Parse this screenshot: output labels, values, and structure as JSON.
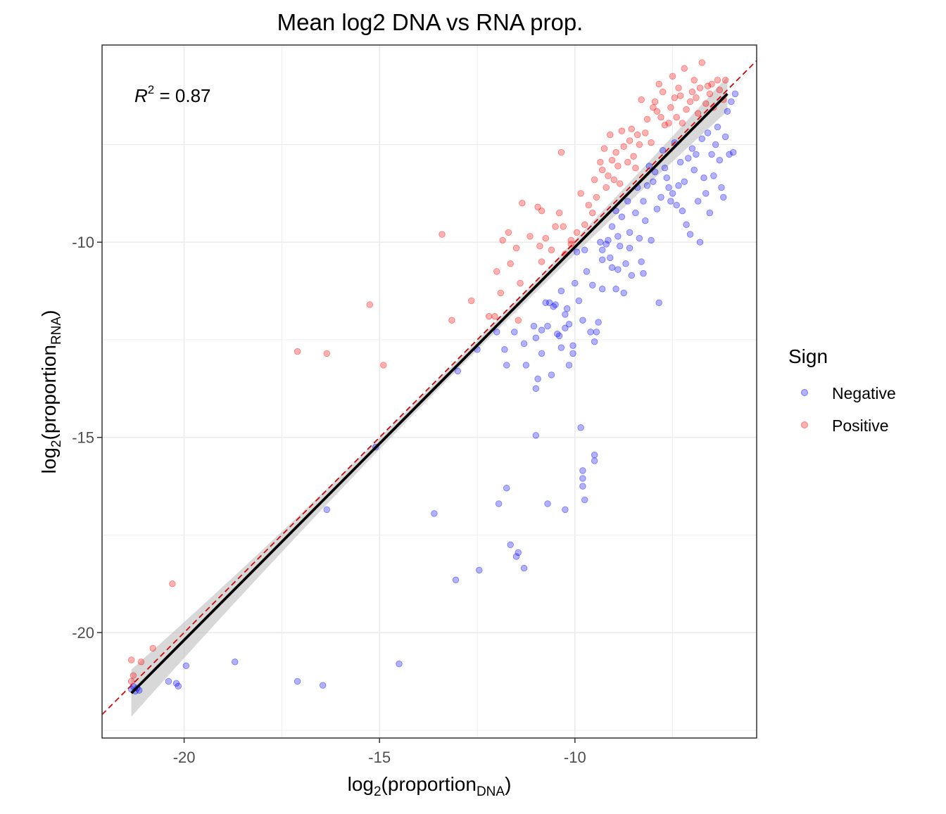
{
  "chart_data": {
    "type": "scatter",
    "title": "Mean log2 DNA vs RNA prop.",
    "xlabel": {
      "base": "log",
      "sub": "2",
      "open": "(proportion",
      "sub2": "DNA",
      "close": ")"
    },
    "ylabel": {
      "base": "log",
      "sub": "2",
      "open": "(proportion",
      "sub2": "RNA",
      "close": ")"
    },
    "xlim": [
      -22.1,
      -5.35
    ],
    "ylim": [
      -22.7,
      -4.95
    ],
    "x_ticks": [
      -20,
      -15,
      -10
    ],
    "x_tick_labels": [
      "-20",
      "-15",
      "-10"
    ],
    "y_ticks": [
      -20,
      -15,
      -10
    ],
    "y_tick_labels": [
      "-20",
      "-15",
      "-10"
    ],
    "grid": true,
    "annotation": {
      "symbol": "R",
      "superscript": "2",
      "text": " = 0.87"
    },
    "legend": {
      "title": "Sign",
      "position": "right",
      "items": [
        {
          "label": "Negative",
          "color": "#0000ff"
        },
        {
          "label": "Positive",
          "color": "#ff0000"
        }
      ]
    },
    "identity_line": {
      "slope": 1,
      "intercept": 0,
      "color": "#cc0000",
      "style": "dashed"
    },
    "fit_line": {
      "x": [
        -21.35,
        -6.1
      ],
      "y": [
        -21.55,
        -6.2
      ],
      "color": "#000000",
      "band_color": "#bebebe"
    },
    "series": [
      {
        "name": "Negative",
        "color": "#0000ff",
        "points": [
          [
            -21.35,
            -21.45
          ],
          [
            -21.3,
            -21.38
          ],
          [
            -21.25,
            -21.5
          ],
          [
            -21.2,
            -21.42
          ],
          [
            -21.15,
            -21.48
          ],
          [
            -20.4,
            -21.25
          ],
          [
            -20.2,
            -21.3
          ],
          [
            -20.15,
            -21.37
          ],
          [
            -19.95,
            -20.85
          ],
          [
            -18.7,
            -20.75
          ],
          [
            -17.1,
            -21.25
          ],
          [
            -16.45,
            -21.35
          ],
          [
            -14.5,
            -20.8
          ],
          [
            -16.35,
            -16.85
          ],
          [
            -13.6,
            -16.95
          ],
          [
            -13.05,
            -18.65
          ],
          [
            -12.45,
            -18.4
          ],
          [
            -11.75,
            -16.3
          ],
          [
            -11.95,
            -16.7
          ],
          [
            -11.65,
            -17.75
          ],
          [
            -11.45,
            -17.95
          ],
          [
            -11.5,
            -18.05
          ],
          [
            -11.3,
            -18.35
          ],
          [
            -11.0,
            -14.95
          ],
          [
            -10.7,
            -16.7
          ],
          [
            -10.25,
            -16.85
          ],
          [
            -9.85,
            -14.75
          ],
          [
            -9.8,
            -15.85
          ],
          [
            -9.8,
            -16.05
          ],
          [
            -9.8,
            -16.25
          ],
          [
            -9.75,
            -16.6
          ],
          [
            -9.5,
            -15.6
          ],
          [
            -9.5,
            -15.45
          ],
          [
            -15.1,
            -15.25
          ],
          [
            -13.0,
            -13.3
          ],
          [
            -12.5,
            -12.75
          ],
          [
            -12.0,
            -12.3
          ],
          [
            -11.8,
            -12.75
          ],
          [
            -11.75,
            -13.15
          ],
          [
            -11.55,
            -12.3
          ],
          [
            -11.3,
            -12.6
          ],
          [
            -11.25,
            -13.15
          ],
          [
            -11.05,
            -12.15
          ],
          [
            -11.0,
            -12.45
          ],
          [
            -11.0,
            -13.75
          ],
          [
            -10.95,
            -13.5
          ],
          [
            -10.85,
            -12.25
          ],
          [
            -10.85,
            -12.85
          ],
          [
            -10.75,
            -11.55
          ],
          [
            -10.7,
            -12.15
          ],
          [
            -10.65,
            -11.55
          ],
          [
            -10.6,
            -13.4
          ],
          [
            -10.55,
            -11.65
          ],
          [
            -10.5,
            -11.6
          ],
          [
            -10.45,
            -12.35
          ],
          [
            -10.4,
            -12.4
          ],
          [
            -10.35,
            -12.7
          ],
          [
            -10.35,
            -11.25
          ],
          [
            -10.25,
            -11.85
          ],
          [
            -10.25,
            -12.2
          ],
          [
            -10.2,
            -11.7
          ],
          [
            -10.15,
            -12.1
          ],
          [
            -10.15,
            -13.15
          ],
          [
            -10.05,
            -12.65
          ],
          [
            -10.05,
            -12.85
          ],
          [
            -10.0,
            -11.05
          ],
          [
            -9.95,
            -10.25
          ],
          [
            -9.9,
            -11.5
          ],
          [
            -9.8,
            -12.0
          ],
          [
            -9.75,
            -10.2
          ],
          [
            -9.7,
            -10.75
          ],
          [
            -9.6,
            -12.3
          ],
          [
            -9.55,
            -11.1
          ],
          [
            -9.5,
            -12.55
          ],
          [
            -9.45,
            -12.3
          ],
          [
            -9.4,
            -12.05
          ],
          [
            -9.35,
            -10.0
          ],
          [
            -9.3,
            -10.2
          ],
          [
            -9.3,
            -10.45
          ],
          [
            -9.3,
            -11.2
          ],
          [
            -9.2,
            -10.05
          ],
          [
            -9.15,
            -9.95
          ],
          [
            -9.1,
            -10.4
          ],
          [
            -9.05,
            -10.65
          ],
          [
            -9.05,
            -9.6
          ],
          [
            -8.95,
            -11.2
          ],
          [
            -8.95,
            -9.2
          ],
          [
            -8.9,
            -9.85
          ],
          [
            -8.9,
            -10.7
          ],
          [
            -8.85,
            -10.1
          ],
          [
            -8.8,
            -9.35
          ],
          [
            -8.75,
            -11.3
          ],
          [
            -8.7,
            -10.55
          ],
          [
            -8.65,
            -8.95
          ],
          [
            -8.6,
            -10.15
          ],
          [
            -8.6,
            -9.75
          ],
          [
            -8.55,
            -10.85
          ],
          [
            -8.45,
            -9.25
          ],
          [
            -8.4,
            -8.6
          ],
          [
            -8.35,
            -9.9
          ],
          [
            -8.3,
            -10.5
          ],
          [
            -8.25,
            -10.8
          ],
          [
            -8.25,
            -8.95
          ],
          [
            -8.2,
            -9.45
          ],
          [
            -8.15,
            -8.55
          ],
          [
            -8.1,
            -8.05
          ],
          [
            -8.05,
            -9.95
          ],
          [
            -8.0,
            -8.45
          ],
          [
            -7.95,
            -8.2
          ],
          [
            -7.9,
            -9.15
          ],
          [
            -7.85,
            -11.55
          ],
          [
            -7.8,
            -8.85
          ],
          [
            -7.75,
            -7.65
          ],
          [
            -7.7,
            -8.1
          ],
          [
            -7.65,
            -8.35
          ],
          [
            -7.6,
            -8.6
          ],
          [
            -7.55,
            -8.95
          ],
          [
            -7.5,
            -8.75
          ],
          [
            -7.45,
            -7.45
          ],
          [
            -7.4,
            -9.05
          ],
          [
            -7.35,
            -8.55
          ],
          [
            -7.3,
            -7.95
          ],
          [
            -7.25,
            -9.2
          ],
          [
            -7.2,
            -8.45
          ],
          [
            -7.15,
            -9.55
          ],
          [
            -7.1,
            -7.85
          ],
          [
            -7.05,
            -9.8
          ],
          [
            -7.0,
            -7.6
          ],
          [
            -6.95,
            -8.15
          ],
          [
            -6.9,
            -7.75
          ],
          [
            -6.85,
            -8.95
          ],
          [
            -6.8,
            -10.0
          ],
          [
            -6.75,
            -7.35
          ],
          [
            -6.7,
            -8.35
          ],
          [
            -6.65,
            -8.75
          ],
          [
            -6.6,
            -7.2
          ],
          [
            -6.55,
            -9.25
          ],
          [
            -6.5,
            -7.75
          ],
          [
            -6.45,
            -8.3
          ],
          [
            -6.4,
            -7.5
          ],
          [
            -6.35,
            -7.05
          ],
          [
            -6.3,
            -7.9
          ],
          [
            -6.25,
            -8.6
          ],
          [
            -6.2,
            -8.85
          ],
          [
            -6.15,
            -7.3
          ],
          [
            -6.1,
            -6.65
          ],
          [
            -6.05,
            -7.75
          ],
          [
            -6.0,
            -6.4
          ],
          [
            -5.95,
            -7.7
          ],
          [
            -5.9,
            -6.2
          ]
        ]
      },
      {
        "name": "Positive",
        "color": "#ff0000",
        "points": [
          [
            -21.35,
            -20.7
          ],
          [
            -21.35,
            -21.25
          ],
          [
            -21.3,
            -21.1
          ],
          [
            -21.1,
            -20.75
          ],
          [
            -20.8,
            -20.4
          ],
          [
            -20.3,
            -18.75
          ],
          [
            -17.1,
            -12.8
          ],
          [
            -16.35,
            -12.85
          ],
          [
            -15.25,
            -11.6
          ],
          [
            -14.9,
            -13.15
          ],
          [
            -13.4,
            -9.8
          ],
          [
            -13.15,
            -12.0
          ],
          [
            -12.65,
            -11.5
          ],
          [
            -12.2,
            -11.9
          ],
          [
            -12.05,
            -11.9
          ],
          [
            -11.9,
            -11.3
          ],
          [
            -12.0,
            -10.75
          ],
          [
            -11.85,
            -9.95
          ],
          [
            -11.7,
            -9.75
          ],
          [
            -11.65,
            -10.55
          ],
          [
            -11.5,
            -10.15
          ],
          [
            -11.45,
            -12.0
          ],
          [
            -11.4,
            -11.05
          ],
          [
            -11.35,
            -9.0
          ],
          [
            -11.15,
            -9.85
          ],
          [
            -10.95,
            -9.1
          ],
          [
            -10.9,
            -10.1
          ],
          [
            -10.85,
            -10.5
          ],
          [
            -10.85,
            -9.2
          ],
          [
            -10.75,
            -9.9
          ],
          [
            -10.6,
            -10.2
          ],
          [
            -10.5,
            -9.6
          ],
          [
            -10.4,
            -9.25
          ],
          [
            -10.35,
            -7.7
          ],
          [
            -10.3,
            -9.6
          ],
          [
            -10.25,
            -10.3
          ],
          [
            -10.1,
            -10.05
          ],
          [
            -10.1,
            -9.95
          ],
          [
            -9.95,
            -9.75
          ],
          [
            -9.85,
            -8.75
          ],
          [
            -9.75,
            -9.55
          ],
          [
            -9.65,
            -9.05
          ],
          [
            -9.55,
            -9.25
          ],
          [
            -9.5,
            -8.4
          ],
          [
            -9.45,
            -8.85
          ],
          [
            -9.35,
            -7.95
          ],
          [
            -9.3,
            -8.15
          ],
          [
            -9.25,
            -7.6
          ],
          [
            -9.2,
            -8.6
          ],
          [
            -9.15,
            -8.3
          ],
          [
            -9.1,
            -7.25
          ],
          [
            -9.05,
            -7.9
          ],
          [
            -9.0,
            -8.4
          ],
          [
            -8.95,
            -7.7
          ],
          [
            -8.9,
            -8.05
          ],
          [
            -8.85,
            -8.5
          ],
          [
            -8.8,
            -7.15
          ],
          [
            -8.75,
            -7.55
          ],
          [
            -8.65,
            -7.95
          ],
          [
            -8.6,
            -7.4
          ],
          [
            -8.55,
            -7.1
          ],
          [
            -8.5,
            -7.8
          ],
          [
            -8.45,
            -8.1
          ],
          [
            -8.4,
            -7.25
          ],
          [
            -8.35,
            -7.5
          ],
          [
            -8.3,
            -6.35
          ],
          [
            -8.2,
            -7.2
          ],
          [
            -8.15,
            -6.85
          ],
          [
            -8.05,
            -7.45
          ],
          [
            -8.0,
            -6.55
          ],
          [
            -7.95,
            -6.4
          ],
          [
            -7.9,
            -6.65
          ],
          [
            -7.85,
            -5.95
          ],
          [
            -7.8,
            -6.8
          ],
          [
            -7.75,
            -6.15
          ],
          [
            -7.7,
            -7.0
          ],
          [
            -7.6,
            -6.95
          ],
          [
            -7.55,
            -6.55
          ],
          [
            -7.5,
            -5.75
          ],
          [
            -7.45,
            -6.3
          ],
          [
            -7.4,
            -6.8
          ],
          [
            -7.35,
            -6.05
          ],
          [
            -7.3,
            -6.25
          ],
          [
            -7.25,
            -6.95
          ],
          [
            -7.2,
            -5.55
          ],
          [
            -7.15,
            -6.6
          ],
          [
            -7.05,
            -6.4
          ],
          [
            -7.0,
            -6.15
          ],
          [
            -6.95,
            -5.85
          ],
          [
            -6.9,
            -6.3
          ],
          [
            -6.85,
            -6.7
          ],
          [
            -6.8,
            -6.05
          ],
          [
            -6.75,
            -5.4
          ],
          [
            -6.65,
            -6.45
          ],
          [
            -6.6,
            -6.0
          ],
          [
            -6.55,
            -6.2
          ],
          [
            -6.5,
            -5.95
          ],
          [
            -6.45,
            -6.55
          ],
          [
            -6.35,
            -5.85
          ],
          [
            -6.3,
            -6.1
          ],
          [
            -6.2,
            -6.35
          ],
          [
            -6.15,
            -5.85
          ]
        ]
      }
    ]
  }
}
